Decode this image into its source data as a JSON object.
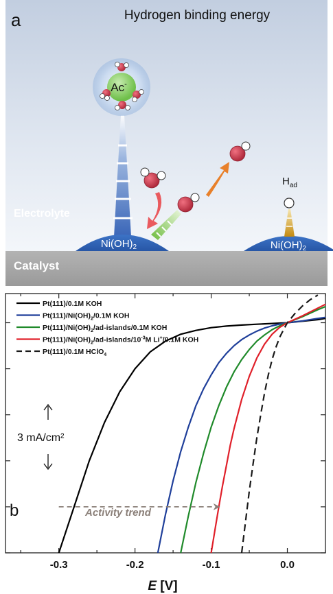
{
  "panel_a": {
    "panel_letter": "a",
    "title": "Hydrogen binding energy",
    "electrolyte_label": "Electrolyte",
    "catalyst_label": "Catalyst",
    "island_left_label": "Ni(OH)",
    "island_left_sub": "2",
    "island_right_label": "Ni(OH)",
    "island_right_sub": "2",
    "cation_label": "Ac",
    "cation_sup": "-",
    "h_ad_label": "H",
    "h_ad_sub": "ad",
    "colors": {
      "sky_top": "#bcc8dc",
      "sky_bottom": "#eef2f8",
      "island": "#2f63b5",
      "catalyst": "#a3a3a3",
      "water_o": "#c0384a",
      "arrow_red": "#e84a4a",
      "arrow_orange": "#e8802a",
      "green_stripe": "#7cc342",
      "gold_stripe": "#d8a018"
    }
  },
  "panel_b": {
    "panel_letter": "b",
    "activity_label": "Activity trend",
    "scale_label": "3 mA/cm²",
    "xlabel_italic": "E",
    "xlabel_unit": " [V]"
  },
  "chart_data": {
    "type": "line",
    "xlim": [
      -0.37,
      0.05
    ],
    "x_ticks": [
      -0.3,
      -0.2,
      -0.1,
      0.0
    ],
    "x_tick_labels": [
      "-0.3",
      "-0.2",
      "-0.1",
      "0.0"
    ],
    "ylim": [
      -15,
      1.9
    ],
    "y_tick_step_mA_cm2": 3,
    "grid": false,
    "legend_position": "top-left",
    "series": [
      {
        "name": "Pt(111)/0.1M KOH",
        "color": "#000000",
        "dash": false,
        "x": [
          -0.3,
          -0.28,
          -0.26,
          -0.24,
          -0.22,
          -0.2,
          -0.18,
          -0.16,
          -0.14,
          -0.12,
          -0.1,
          -0.08,
          -0.06,
          -0.04,
          -0.02,
          0.0,
          0.02,
          0.04,
          0.05
        ],
        "y": [
          -15,
          -12.0,
          -9.0,
          -6.5,
          -4.5,
          -3.0,
          -1.9,
          -1.2,
          -0.75,
          -0.5,
          -0.32,
          -0.22,
          -0.15,
          -0.1,
          -0.05,
          0.0,
          0.1,
          0.2,
          0.28
        ]
      },
      {
        "name": "Pt(111)/Ni(OH)2/0.1M KOH",
        "sub_label": "2",
        "prefix": "Pt(111)/Ni(OH)",
        "suffix": "/0.1M KOH",
        "color": "#1f3f9a",
        "dash": false,
        "x": [
          -0.17,
          -0.16,
          -0.15,
          -0.14,
          -0.13,
          -0.12,
          -0.11,
          -0.1,
          -0.09,
          -0.08,
          -0.07,
          -0.06,
          -0.05,
          -0.04,
          -0.03,
          -0.02,
          -0.01,
          0.0,
          0.02,
          0.04,
          0.05
        ],
        "y": [
          -15,
          -12.5,
          -10.3,
          -8.4,
          -6.8,
          -5.4,
          -4.3,
          -3.4,
          -2.6,
          -2.0,
          -1.5,
          -1.1,
          -0.8,
          -0.55,
          -0.35,
          -0.2,
          -0.09,
          0.0,
          0.12,
          0.28,
          0.35
        ]
      },
      {
        "name": "Pt(111)/Ni(OH)2/ad-islands/0.1M KOH",
        "sub_label": "2",
        "prefix": "Pt(111)/Ni(OH)",
        "suffix": "/ad-islands/0.1M KOH",
        "color": "#1f8a2a",
        "dash": false,
        "x": [
          -0.14,
          -0.13,
          -0.12,
          -0.11,
          -0.1,
          -0.09,
          -0.08,
          -0.07,
          -0.06,
          -0.05,
          -0.04,
          -0.03,
          -0.02,
          -0.01,
          0.0,
          0.02,
          0.04,
          0.05
        ],
        "y": [
          -15,
          -12.6,
          -10.4,
          -8.5,
          -6.8,
          -5.4,
          -4.2,
          -3.2,
          -2.4,
          -1.75,
          -1.2,
          -0.8,
          -0.45,
          -0.2,
          0.0,
          0.4,
          0.85,
          1.05
        ]
      },
      {
        "name": "Pt(111)/Ni(OH)2/ad-islands/10-3M Li+/0.1M KOH",
        "prefix": "Pt(111)/Ni(OH)",
        "sub_label": "2",
        "mid": "/ad-islands/10",
        "sup_label": "-3",
        "mid2": "M Li",
        "sup_label2": "+",
        "suffix": "/0.1M KOH",
        "color": "#e0202a",
        "dash": false,
        "x": [
          -0.1,
          -0.095,
          -0.09,
          -0.085,
          -0.08,
          -0.075,
          -0.07,
          -0.06,
          -0.05,
          -0.04,
          -0.03,
          -0.02,
          -0.01,
          0.0,
          0.02,
          0.04,
          0.05
        ],
        "y": [
          -15,
          -13.5,
          -12.0,
          -10.6,
          -9.3,
          -8.0,
          -6.9,
          -5.0,
          -3.5,
          -2.3,
          -1.4,
          -0.75,
          -0.3,
          0.0,
          0.45,
          0.95,
          1.2
        ]
      },
      {
        "name": "Pt(111)/0.1M HClO4",
        "prefix": "Pt(111)/0.1M HClO",
        "sub_label": "4",
        "suffix": "",
        "color": "#1a1a1a",
        "dash": true,
        "x": [
          -0.06,
          -0.055,
          -0.05,
          -0.045,
          -0.04,
          -0.035,
          -0.03,
          -0.025,
          -0.02,
          -0.015,
          -0.01,
          -0.005,
          0.0,
          0.01,
          0.02,
          0.03,
          0.04
        ],
        "y": [
          -15,
          -13.0,
          -11.0,
          -9.2,
          -7.5,
          -6.0,
          -4.6,
          -3.4,
          -2.4,
          -1.6,
          -0.95,
          -0.45,
          0.0,
          0.6,
          1.1,
          1.5,
          1.8
        ]
      }
    ],
    "activity_arrow": {
      "x_start": -0.3,
      "x_end": -0.09,
      "y": -12.0
    }
  }
}
